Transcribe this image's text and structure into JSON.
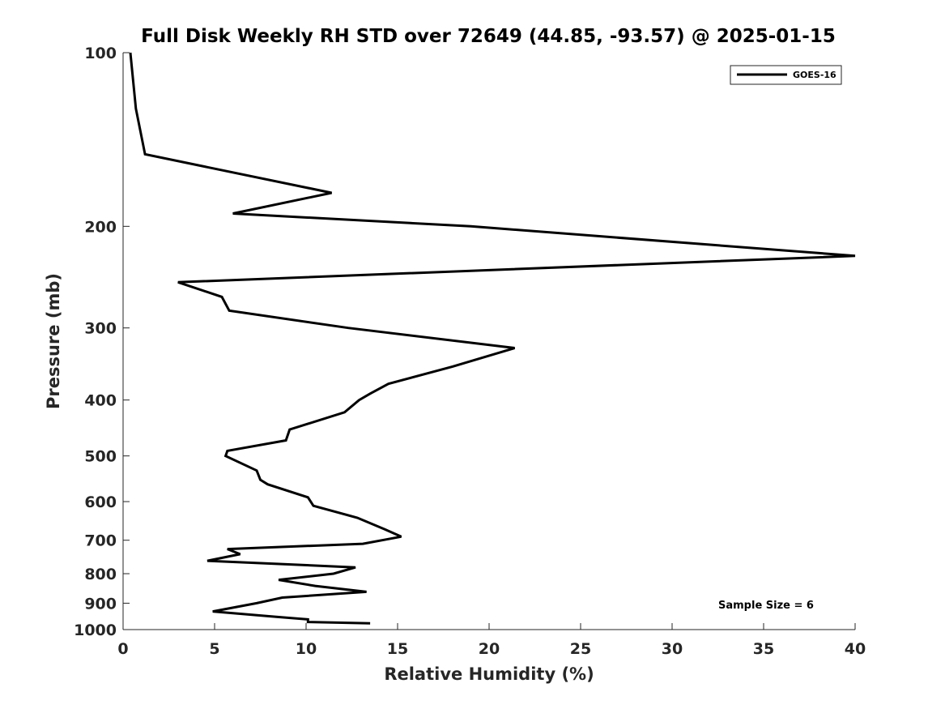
{
  "chart_data": {
    "type": "line",
    "title": "Full Disk Weekly RH STD over 72649 (44.85, -93.57) @ 2025-01-15",
    "xlabel": "Relative Humidity (%)",
    "ylabel": "Pressure (mb)",
    "xlim": [
      0,
      40
    ],
    "ylim": [
      100,
      1000
    ],
    "yscale": "log",
    "y_reversed": true,
    "x_ticks": [
      0,
      5,
      10,
      15,
      20,
      25,
      30,
      35,
      40
    ],
    "x_tick_labels": [
      "0",
      "5",
      "10",
      "15",
      "20",
      "25",
      "30",
      "35",
      "40"
    ],
    "y_ticks": [
      100,
      200,
      300,
      400,
      500,
      600,
      700,
      800,
      900,
      1000
    ],
    "y_tick_labels": [
      "100",
      "200",
      "300",
      "400",
      "500",
      "600",
      "700",
      "800",
      "900",
      "1000"
    ],
    "grid": false,
    "legend": {
      "position": "top-right",
      "entries": [
        "GOES-16"
      ]
    },
    "series": [
      {
        "name": "GOES-16",
        "color": "#000000",
        "x": [
          0.4,
          0.7,
          1.2,
          11.4,
          6.0,
          19.0,
          40.0,
          40.0,
          3.0,
          5.4,
          5.8,
          12.3,
          21.4,
          18.0,
          14.5,
          13.5,
          12.9,
          12.1,
          9.1,
          8.9,
          5.7,
          5.6,
          7.3,
          7.5,
          7.9,
          10.1,
          10.4,
          12.8,
          14.3,
          15.2,
          13.1,
          5.7,
          6.4,
          4.6,
          12.7,
          11.5,
          8.5,
          10.5,
          13.3,
          8.7,
          7.3,
          4.9,
          8.3,
          10.1,
          10.1,
          13.5
        ],
        "y": [
          100,
          125,
          150,
          175,
          190,
          200,
          225,
          225,
          250,
          265,
          280,
          300,
          325,
          350,
          375,
          390,
          400,
          420,
          450,
          470,
          490,
          500,
          530,
          550,
          560,
          590,
          610,
          640,
          670,
          690,
          710,
          725,
          740,
          760,
          780,
          800,
          820,
          840,
          860,
          880,
          900,
          930,
          950,
          960,
          970,
          975
        ]
      }
    ],
    "annotations": [
      "Sample Size = 6"
    ]
  }
}
